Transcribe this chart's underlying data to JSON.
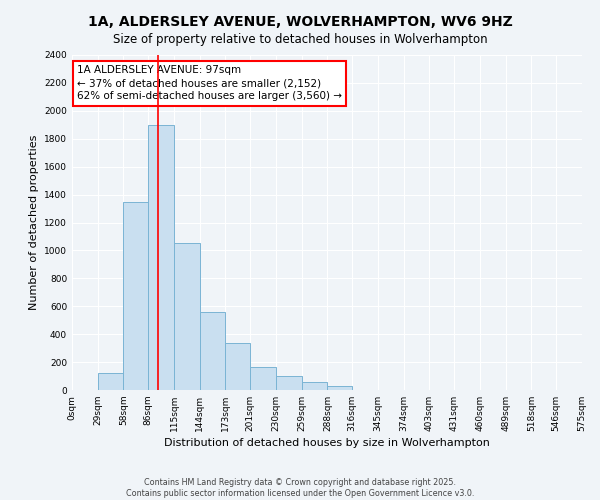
{
  "title": "1A, ALDERSLEY AVENUE, WOLVERHAMPTON, WV6 9HZ",
  "subtitle": "Size of property relative to detached houses in Wolverhampton",
  "xlabel": "Distribution of detached houses by size in Wolverhampton",
  "ylabel": "Number of detached properties",
  "bin_edges": [
    0,
    29,
    58,
    86,
    115,
    144,
    173,
    201,
    230,
    259,
    288,
    316,
    345,
    374,
    403,
    431,
    460,
    489,
    518,
    546,
    575
  ],
  "bin_labels": [
    "0sqm",
    "29sqm",
    "58sqm",
    "86sqm",
    "115sqm",
    "144sqm",
    "173sqm",
    "201sqm",
    "230sqm",
    "259sqm",
    "288sqm",
    "316sqm",
    "345sqm",
    "374sqm",
    "403sqm",
    "431sqm",
    "460sqm",
    "489sqm",
    "518sqm",
    "546sqm",
    "575sqm"
  ],
  "bar_heights": [
    0,
    125,
    1350,
    1900,
    1050,
    560,
    335,
    165,
    100,
    60,
    30,
    0,
    0,
    0,
    0,
    0,
    0,
    0,
    0,
    0
  ],
  "bar_color": "#c9dff0",
  "bar_edge_color": "#7ab4d4",
  "vline_x": 97,
  "vline_color": "red",
  "annotation_title": "1A ALDERSLEY AVENUE: 97sqm",
  "annotation_line1": "← 37% of detached houses are smaller (2,152)",
  "annotation_line2": "62% of semi-detached houses are larger (3,560) →",
  "annotation_box_color": "white",
  "annotation_box_edge_color": "red",
  "ylim": [
    0,
    2400
  ],
  "yticks": [
    0,
    200,
    400,
    600,
    800,
    1000,
    1200,
    1400,
    1600,
    1800,
    2000,
    2200,
    2400
  ],
  "footer_line1": "Contains HM Land Registry data © Crown copyright and database right 2025.",
  "footer_line2": "Contains public sector information licensed under the Open Government Licence v3.0.",
  "background_color": "#f0f4f8",
  "grid_color": "#ffffff",
  "title_fontsize": 10,
  "subtitle_fontsize": 8.5,
  "axis_label_fontsize": 8,
  "tick_fontsize": 6.5,
  "annotation_fontsize": 7.5,
  "footer_fontsize": 5.8
}
